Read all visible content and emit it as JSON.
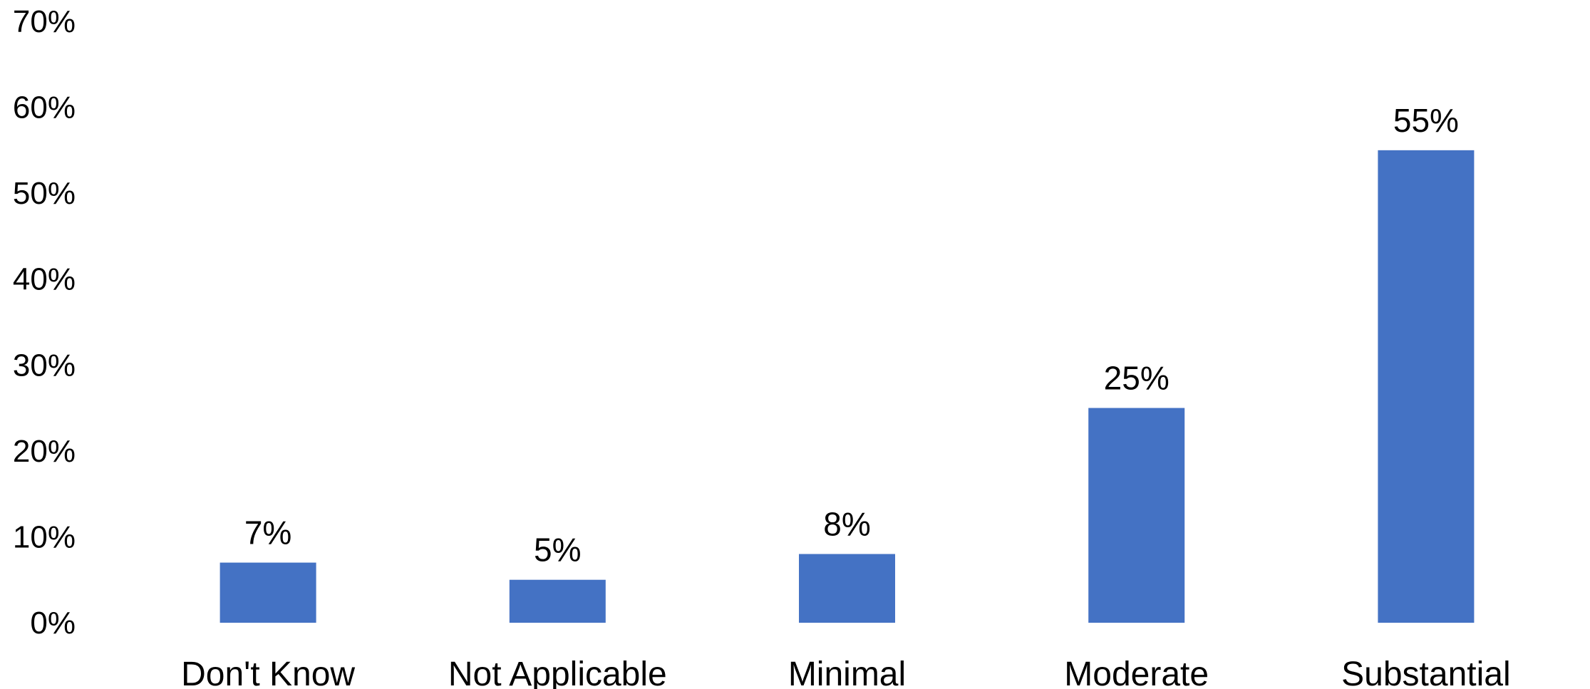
{
  "chart_data": {
    "type": "bar",
    "title": "",
    "xlabel": "",
    "ylabel": "",
    "categories": [
      "Don't Know",
      "Not Applicable",
      "Minimal",
      "Moderate",
      "Substantial"
    ],
    "values": [
      7,
      5,
      8,
      25,
      55
    ],
    "data_labels": [
      "7%",
      "5%",
      "8%",
      "25%",
      "55%"
    ],
    "ylim": [
      0,
      70
    ],
    "yticks": [
      0,
      10,
      20,
      30,
      40,
      50,
      60,
      70
    ],
    "ytick_labels": [
      "0%",
      "10%",
      "20%",
      "30%",
      "40%",
      "50%",
      "60%",
      "70%"
    ],
    "grid": false,
    "legend": "none",
    "bar_color": "#4472C4"
  }
}
